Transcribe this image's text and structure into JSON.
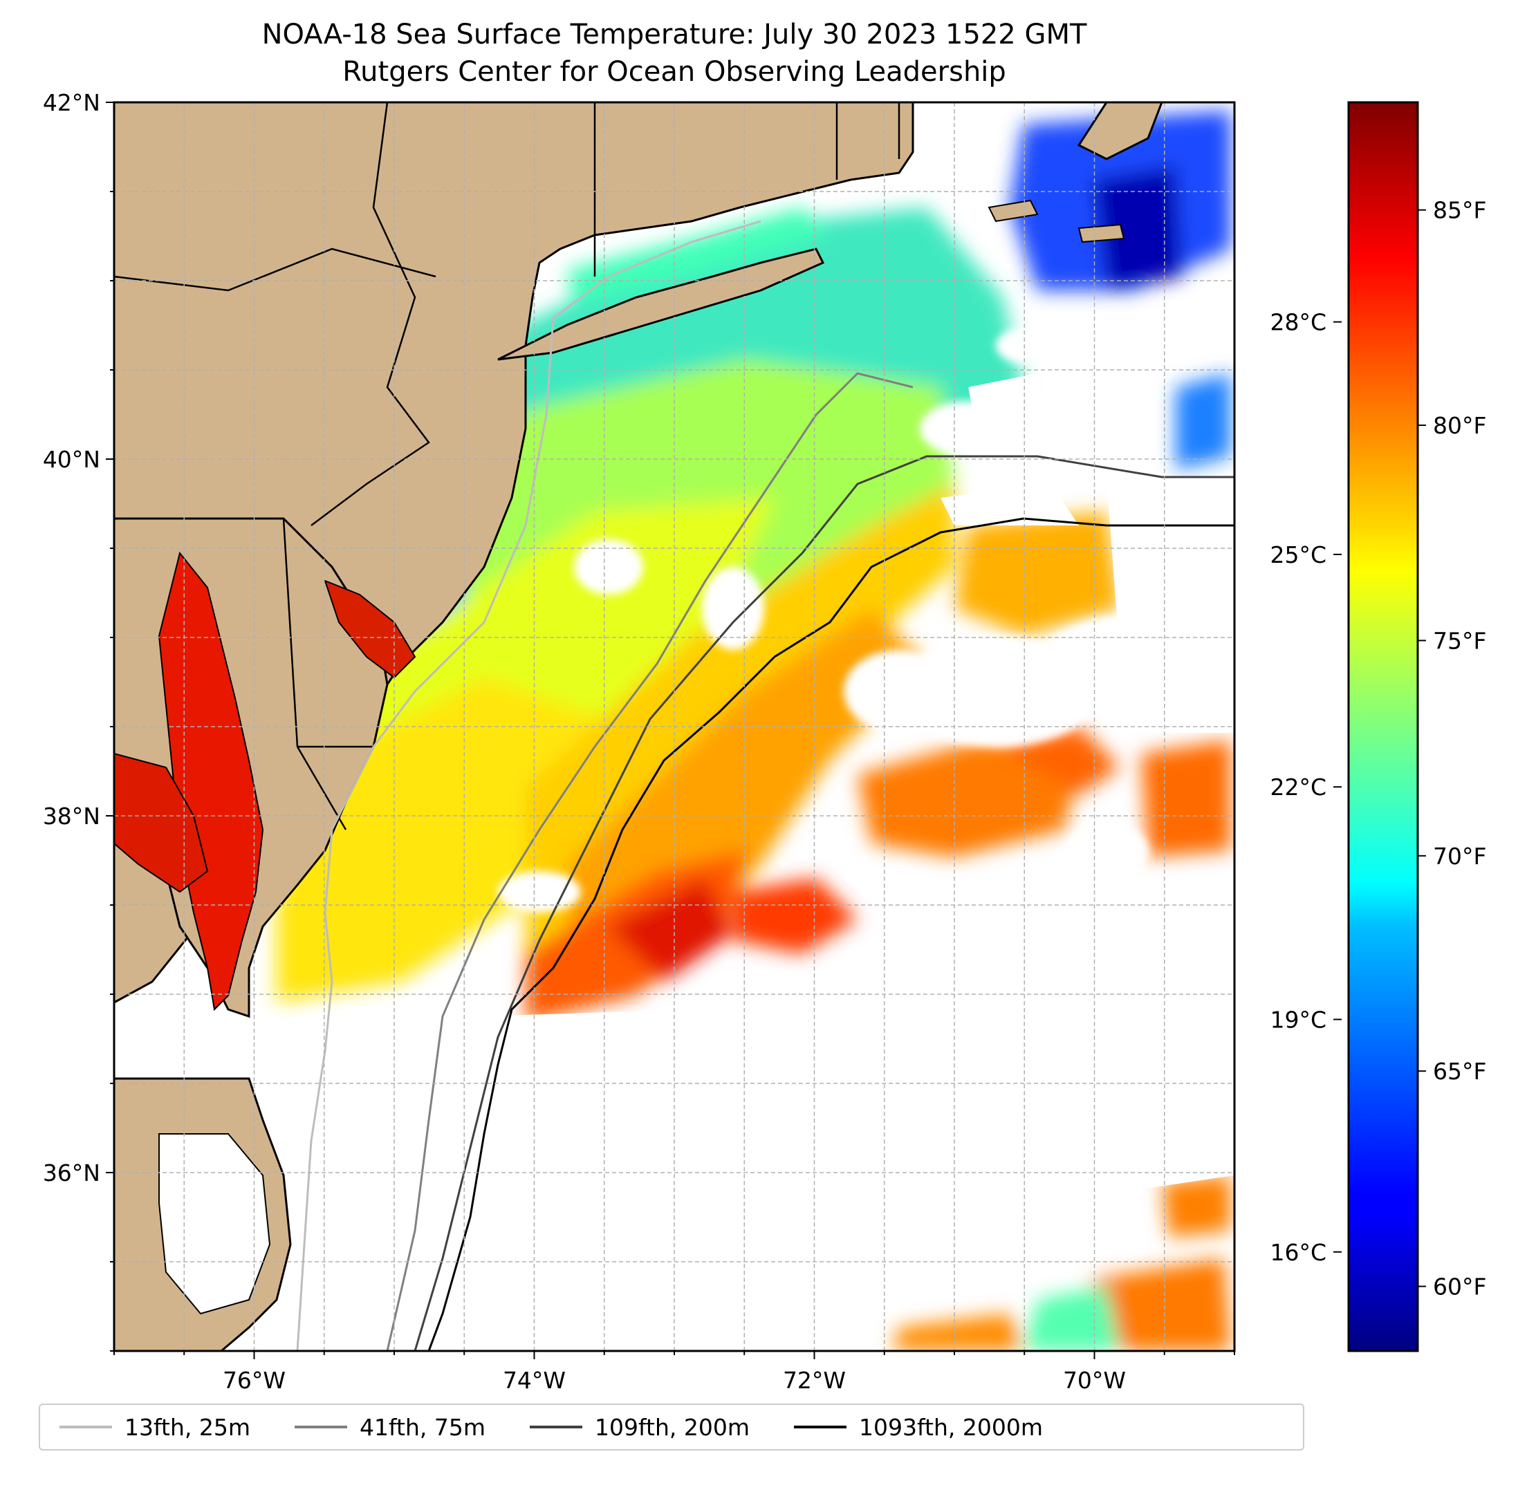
{
  "title": {
    "line1": "NOAA-18 Sea Surface Temperature: July 30 2023 1522 GMT",
    "line2": "Rutgers Center for Ocean Observing Leadership"
  },
  "map": {
    "lat_range": [
      35,
      42
    ],
    "lon_range": [
      -77,
      -69
    ],
    "lat_ticks": [
      {
        "value": 42,
        "label": "42°N"
      },
      {
        "value": 40,
        "label": "40°N"
      },
      {
        "value": 38,
        "label": "38°N"
      },
      {
        "value": 36,
        "label": "36°N"
      }
    ],
    "lon_ticks": [
      {
        "value": -76,
        "label": "76°W"
      },
      {
        "value": -74,
        "label": "74°W"
      },
      {
        "value": -72,
        "label": "72°W"
      },
      {
        "value": -70,
        "label": "70°W"
      }
    ],
    "gridlines": true,
    "land_color": "#d2b48c",
    "water_missing_color": "#ffffff"
  },
  "colorbar": {
    "colormap": "jet",
    "range_f": [
      58.5,
      87.5
    ],
    "fahrenheit_ticks": [
      {
        "value": 85,
        "label": "85°F"
      },
      {
        "value": 80,
        "label": "80°F"
      },
      {
        "value": 75,
        "label": "75°F"
      },
      {
        "value": 70,
        "label": "70°F"
      },
      {
        "value": 65,
        "label": "65°F"
      },
      {
        "value": 60,
        "label": "60°F"
      }
    ],
    "celsius_ticks": [
      {
        "value": 28,
        "label": "28°C"
      },
      {
        "value": 25,
        "label": "25°C"
      },
      {
        "value": 22,
        "label": "22°C"
      },
      {
        "value": 19,
        "label": "19°C"
      },
      {
        "value": 16,
        "label": "16°C"
      }
    ]
  },
  "legend": {
    "placement": "bottom",
    "items": [
      {
        "label": "13fth, 25m",
        "color": "#bdbdbd"
      },
      {
        "label": "41fth, 75m",
        "color": "#808080"
      },
      {
        "label": "109fth, 200m",
        "color": "#404040"
      },
      {
        "label": "1093fth, 2000m",
        "color": "#000000"
      }
    ]
  },
  "chart_data": {
    "type": "heatmap",
    "title": "NOAA-18 Sea Surface Temperature: July 30 2023 1522 GMT",
    "subtitle": "Rutgers Center for Ocean Observing Leadership",
    "x_range": [
      -77,
      -69
    ],
    "y_range": [
      35,
      42
    ],
    "value_units": "°F",
    "value_range": [
      58.5,
      87.5
    ],
    "colormap": "jet",
    "series": [
      {
        "name": "13fth, 25m"
      },
      {
        "name": "41fth, 75m"
      },
      {
        "name": "109fth, 200m"
      },
      {
        "name": "1093fth, 2000m"
      }
    ]
  }
}
